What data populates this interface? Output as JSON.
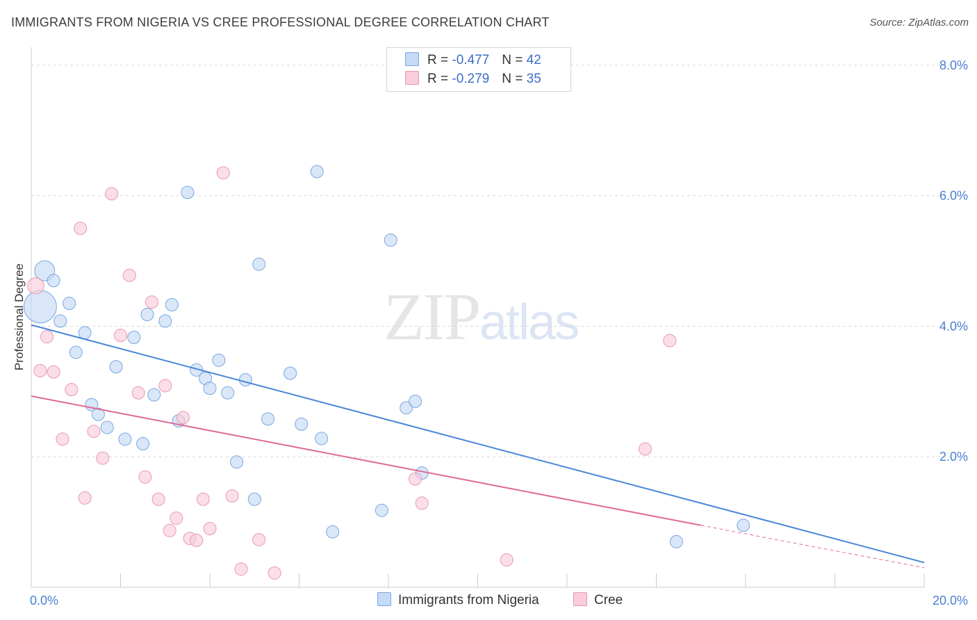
{
  "header": {
    "title": "IMMIGRANTS FROM NIGERIA VS CREE PROFESSIONAL DEGREE CORRELATION CHART",
    "source": "Source: ZipAtlas.com"
  },
  "watermark": {
    "part1": "ZIP",
    "part2": "atlas"
  },
  "legend": {
    "rows": [
      {
        "r_label": "R = ",
        "r_value": "-0.477",
        "n_label": "N = ",
        "n_value": "42",
        "color": "#a9c8f0"
      },
      {
        "r_label": "R = ",
        "r_value": "-0.279",
        "n_label": "N = ",
        "n_value": "35",
        "color": "#f5b8cb"
      }
    ]
  },
  "bottom_legend": {
    "items": [
      {
        "label": "Immigrants from Nigeria",
        "color": "#a9c8f0"
      },
      {
        "label": "Cree",
        "color": "#f5b8cb"
      }
    ]
  },
  "chart_data": {
    "type": "scatter",
    "title": "IMMIGRANTS FROM NIGERIA VS CREE PROFESSIONAL DEGREE CORRELATION CHART",
    "xlabel": "",
    "ylabel": "Professional Degree",
    "xlim": [
      0,
      20
    ],
    "ylim": [
      0,
      8.2
    ],
    "x_tick_labels": [
      {
        "value": 0,
        "label": "0.0%"
      },
      {
        "value": 20,
        "label": "20.0%"
      }
    ],
    "y_tick_labels": [
      {
        "value": 2,
        "label": "2.0%"
      },
      {
        "value": 4,
        "label": "4.0%"
      },
      {
        "value": 6,
        "label": "6.0%"
      },
      {
        "value": 8,
        "label": "8.0%"
      }
    ],
    "grid": {
      "horizontal": true,
      "style": "dashed"
    },
    "legend_position": "top-center",
    "series": [
      {
        "name": "Immigrants from Nigeria",
        "color": "#4a86d8",
        "fill": "#c5daf5",
        "trend": {
          "x": [
            0,
            20
          ],
          "y": [
            4.02,
            0.38
          ]
        },
        "points": [
          {
            "x": 0.2,
            "y": 4.3,
            "s": 2.6
          },
          {
            "x": 0.3,
            "y": 4.85,
            "s": 1.6
          },
          {
            "x": 0.5,
            "y": 4.7,
            "s": 1
          },
          {
            "x": 0.65,
            "y": 4.08,
            "s": 1
          },
          {
            "x": 0.85,
            "y": 4.35,
            "s": 1
          },
          {
            "x": 1.0,
            "y": 3.6,
            "s": 1
          },
          {
            "x": 1.2,
            "y": 3.9,
            "s": 1
          },
          {
            "x": 1.35,
            "y": 2.8,
            "s": 1
          },
          {
            "x": 1.5,
            "y": 2.65,
            "s": 1
          },
          {
            "x": 1.7,
            "y": 2.45,
            "s": 1
          },
          {
            "x": 1.9,
            "y": 3.38,
            "s": 1
          },
          {
            "x": 2.1,
            "y": 2.27,
            "s": 1
          },
          {
            "x": 2.3,
            "y": 3.83,
            "s": 1
          },
          {
            "x": 2.5,
            "y": 2.2,
            "s": 1
          },
          {
            "x": 2.6,
            "y": 4.18,
            "s": 1
          },
          {
            "x": 2.75,
            "y": 2.95,
            "s": 1
          },
          {
            "x": 3.0,
            "y": 4.08,
            "s": 1
          },
          {
            "x": 3.15,
            "y": 4.33,
            "s": 1
          },
          {
            "x": 3.3,
            "y": 2.55,
            "s": 1
          },
          {
            "x": 3.5,
            "y": 6.05,
            "s": 1
          },
          {
            "x": 3.7,
            "y": 3.33,
            "s": 1
          },
          {
            "x": 3.9,
            "y": 3.2,
            "s": 1
          },
          {
            "x": 4.0,
            "y": 3.05,
            "s": 1
          },
          {
            "x": 4.2,
            "y": 3.48,
            "s": 1
          },
          {
            "x": 4.4,
            "y": 2.98,
            "s": 1
          },
          {
            "x": 4.6,
            "y": 1.92,
            "s": 1
          },
          {
            "x": 4.8,
            "y": 3.18,
            "s": 1
          },
          {
            "x": 5.0,
            "y": 1.35,
            "s": 1
          },
          {
            "x": 5.1,
            "y": 4.95,
            "s": 1
          },
          {
            "x": 5.3,
            "y": 2.58,
            "s": 1
          },
          {
            "x": 5.8,
            "y": 3.28,
            "s": 1
          },
          {
            "x": 6.05,
            "y": 2.5,
            "s": 1
          },
          {
            "x": 6.4,
            "y": 6.37,
            "s": 1
          },
          {
            "x": 6.5,
            "y": 2.28,
            "s": 1
          },
          {
            "x": 6.75,
            "y": 0.85,
            "s": 1
          },
          {
            "x": 7.85,
            "y": 1.18,
            "s": 1
          },
          {
            "x": 8.05,
            "y": 5.32,
            "s": 1
          },
          {
            "x": 8.4,
            "y": 2.75,
            "s": 1
          },
          {
            "x": 8.6,
            "y": 2.85,
            "s": 1
          },
          {
            "x": 8.75,
            "y": 1.75,
            "s": 1
          },
          {
            "x": 14.45,
            "y": 0.7,
            "s": 1
          },
          {
            "x": 15.95,
            "y": 0.95,
            "s": 1
          }
        ]
      },
      {
        "name": "Cree",
        "color": "#e06b94",
        "fill": "#f9cddb",
        "trend": {
          "x": [
            0,
            15
          ],
          "y": [
            2.93,
            0.95
          ]
        },
        "trend_dashed": {
          "x": [
            15,
            20
          ],
          "y": [
            0.95,
            0.3
          ]
        },
        "points": [
          {
            "x": 0.1,
            "y": 4.62,
            "s": 1.3
          },
          {
            "x": 0.2,
            "y": 3.32,
            "s": 1
          },
          {
            "x": 0.35,
            "y": 3.84,
            "s": 1
          },
          {
            "x": 0.5,
            "y": 3.3,
            "s": 1
          },
          {
            "x": 0.7,
            "y": 2.27,
            "s": 1
          },
          {
            "x": 0.9,
            "y": 3.03,
            "s": 1
          },
          {
            "x": 1.1,
            "y": 5.5,
            "s": 1
          },
          {
            "x": 1.2,
            "y": 1.37,
            "s": 1
          },
          {
            "x": 1.4,
            "y": 2.39,
            "s": 1
          },
          {
            "x": 1.6,
            "y": 1.98,
            "s": 1
          },
          {
            "x": 1.8,
            "y": 6.03,
            "s": 1
          },
          {
            "x": 2.0,
            "y": 3.86,
            "s": 1
          },
          {
            "x": 2.2,
            "y": 4.78,
            "s": 1
          },
          {
            "x": 2.4,
            "y": 2.98,
            "s": 1
          },
          {
            "x": 2.55,
            "y": 1.69,
            "s": 1
          },
          {
            "x": 2.7,
            "y": 4.37,
            "s": 1
          },
          {
            "x": 2.85,
            "y": 1.35,
            "s": 1
          },
          {
            "x": 3.0,
            "y": 3.09,
            "s": 1
          },
          {
            "x": 3.1,
            "y": 0.87,
            "s": 1
          },
          {
            "x": 3.25,
            "y": 1.06,
            "s": 1
          },
          {
            "x": 3.4,
            "y": 2.6,
            "s": 1
          },
          {
            "x": 3.55,
            "y": 0.75,
            "s": 1
          },
          {
            "x": 3.7,
            "y": 0.72,
            "s": 1
          },
          {
            "x": 3.85,
            "y": 1.35,
            "s": 1
          },
          {
            "x": 4.0,
            "y": 0.9,
            "s": 1
          },
          {
            "x": 4.3,
            "y": 6.35,
            "s": 1
          },
          {
            "x": 4.5,
            "y": 1.4,
            "s": 1
          },
          {
            "x": 4.7,
            "y": 0.28,
            "s": 1
          },
          {
            "x": 5.1,
            "y": 0.73,
            "s": 1
          },
          {
            "x": 5.45,
            "y": 0.22,
            "s": 1
          },
          {
            "x": 8.6,
            "y": 1.66,
            "s": 1
          },
          {
            "x": 8.75,
            "y": 1.29,
            "s": 1
          },
          {
            "x": 10.65,
            "y": 0.42,
            "s": 1
          },
          {
            "x": 13.75,
            "y": 2.12,
            "s": 1
          },
          {
            "x": 14.3,
            "y": 3.78,
            "s": 1
          }
        ]
      }
    ]
  }
}
